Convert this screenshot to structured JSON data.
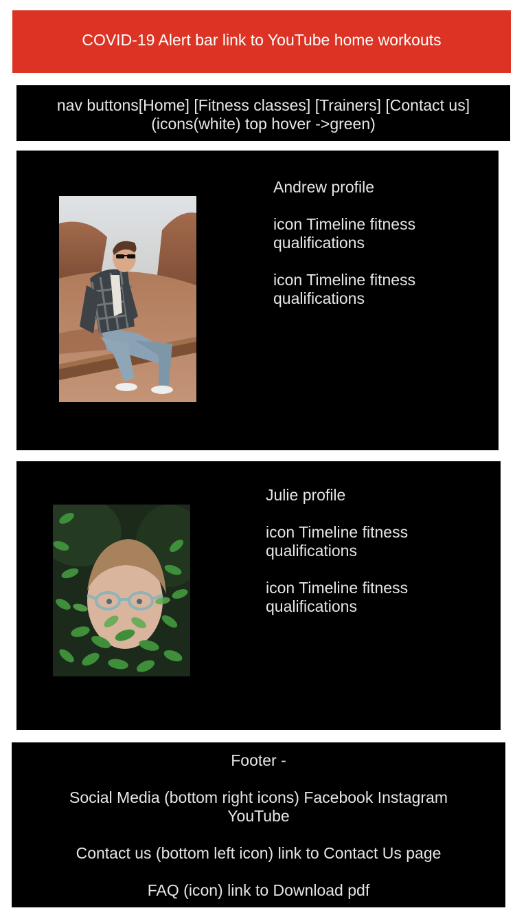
{
  "alert": {
    "text": "COVID-19 Alert bar link to YouTube home workouts"
  },
  "nav": {
    "text": "nav buttons[Home] [Fitness classes] [Trainers] [Contact us](icons(white) top hover ->green)"
  },
  "profiles": [
    {
      "name": "Andrew profile",
      "line1": "icon Timeline fitness qualifications",
      "line2": "icon Timeline fitness qualifications"
    },
    {
      "name": "Julie profile",
      "line1": "icon Timeline fitness qualifications",
      "line2": "icon Timeline fitness qualifications"
    }
  ],
  "footer": {
    "heading": "Footer -",
    "social": "Social Media (bottom right icons) Facebook Instagram YouTube",
    "contact": "Contact us (bottom left icon) link to Contact Us page",
    "faq": "FAQ (icon) link to Download pdf"
  },
  "colors": {
    "alert": "#dc3324",
    "panel": "#000000",
    "text": "#e6e6e6"
  }
}
